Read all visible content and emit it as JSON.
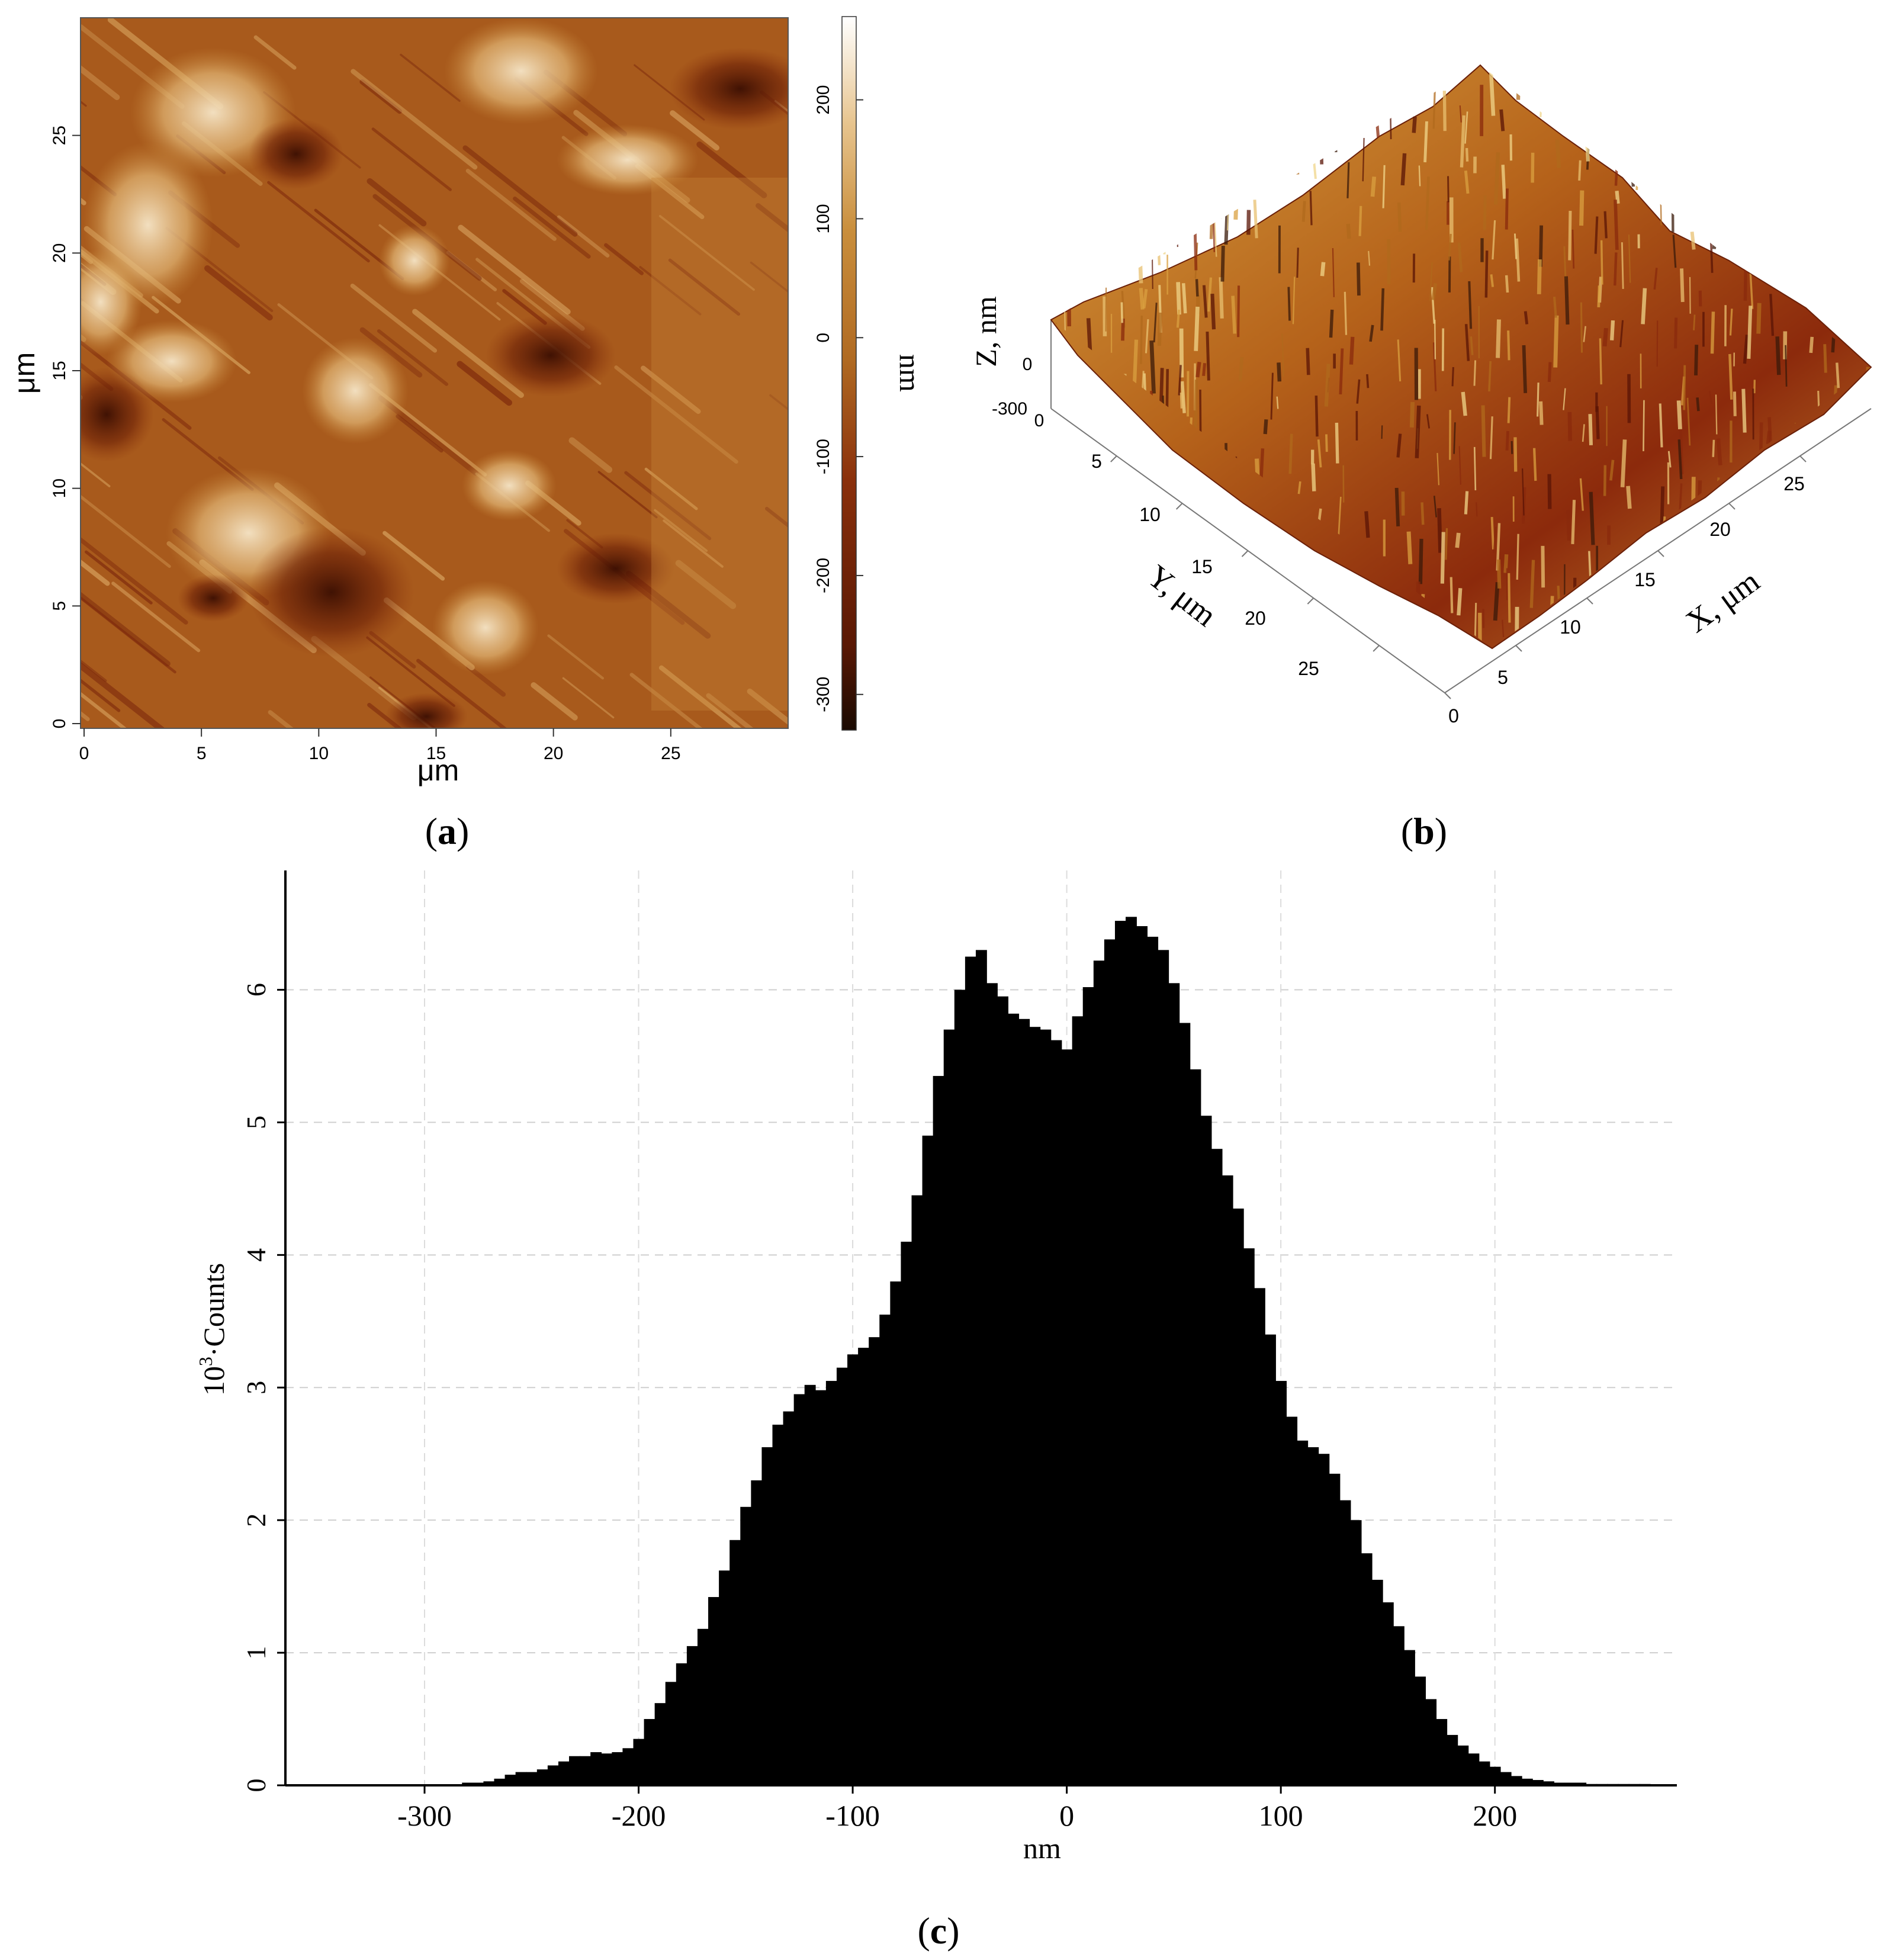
{
  "panels": {
    "a": {
      "label_paren_open": "(",
      "label_letter": "a",
      "label_paren_close": ")",
      "x_axis_label": "μm",
      "y_axis_label": "μm",
      "x_ticks": [
        "0",
        "5",
        "10",
        "15",
        "20",
        "25"
      ],
      "y_ticks": [
        "0",
        "5",
        "10",
        "15",
        "20",
        "25"
      ],
      "colorbar_label": "nm",
      "colorbar_ticks": [
        "200",
        "100",
        "0",
        "-100",
        "-200",
        "-300"
      ],
      "colorbar_range": [
        -330,
        270
      ],
      "colors": [
        "#1a0a02",
        "#6b1d06",
        "#a8541a",
        "#c98a3a",
        "#e0b877",
        "#f3e2c4",
        "#ffffff"
      ]
    },
    "b": {
      "label_paren_open": "(",
      "label_letter": "b",
      "label_paren_close": ")",
      "z_axis_label": "Z, nm",
      "z_ticks": [
        "0",
        "-300"
      ],
      "y_axis_label": "Y, μm",
      "y_ticks": [
        "0",
        "5",
        "10",
        "15",
        "20",
        "25"
      ],
      "x_axis_label": "X, μm",
      "x_ticks": [
        "0",
        "5",
        "10",
        "15",
        "20",
        "25"
      ]
    },
    "c": {
      "label_paren_open": "(",
      "label_letter": "c",
      "label_paren_close": ")"
    }
  },
  "chart_data": [
    {
      "type": "heatmap",
      "panel": "a",
      "xlabel": "μm",
      "ylabel": "μm",
      "xlim": [
        0,
        30
      ],
      "ylim": [
        0,
        30
      ],
      "colorbar_label": "nm",
      "zlim": [
        -330,
        270
      ]
    },
    {
      "type": "area",
      "panel": "b",
      "xlabel": "X, μm",
      "ylabel": "Y, μm",
      "zlabel": "Z, nm",
      "xlim": [
        0,
        30
      ],
      "ylim": [
        0,
        30
      ]
    },
    {
      "type": "bar",
      "panel": "c",
      "title": "",
      "xlabel": "nm",
      "ylabel_base": "10",
      "ylabel_exp": "3",
      "ylabel_rest": "·Counts",
      "xlim": [
        -365,
        285
      ],
      "ylim": [
        0,
        6.9
      ],
      "x_ticks": [
        -300,
        -200,
        -100,
        0,
        100,
        200
      ],
      "y_ticks": [
        0,
        1,
        2,
        3,
        4,
        5,
        6
      ],
      "grid": true,
      "bin_width": 5,
      "x": [
        -280,
        -275,
        -270,
        -265,
        -260,
        -255,
        -250,
        -245,
        -240,
        -235,
        -230,
        -225,
        -220,
        -215,
        -210,
        -205,
        -200,
        -195,
        -190,
        -185,
        -180,
        -175,
        -170,
        -165,
        -160,
        -155,
        -150,
        -145,
        -140,
        -135,
        -130,
        -125,
        -120,
        -115,
        -110,
        -105,
        -100,
        -95,
        -90,
        -85,
        -80,
        -75,
        -70,
        -65,
        -60,
        -55,
        -50,
        -45,
        -40,
        -35,
        -30,
        -25,
        -20,
        -15,
        -10,
        -5,
        0,
        5,
        10,
        15,
        20,
        25,
        30,
        35,
        40,
        45,
        50,
        55,
        60,
        65,
        70,
        75,
        80,
        85,
        90,
        95,
        100,
        105,
        110,
        115,
        120,
        125,
        130,
        135,
        140,
        145,
        150,
        155,
        160,
        165,
        170,
        175,
        180,
        185,
        190,
        195,
        200,
        205,
        210,
        215,
        220,
        225,
        230,
        235,
        240,
        245,
        250,
        255,
        260,
        265,
        270
      ],
      "values": [
        0.02,
        0.02,
        0.03,
        0.05,
        0.08,
        0.1,
        0.1,
        0.12,
        0.15,
        0.18,
        0.22,
        0.22,
        0.25,
        0.24,
        0.25,
        0.28,
        0.35,
        0.5,
        0.62,
        0.78,
        0.92,
        1.05,
        1.18,
        1.42,
        1.62,
        1.85,
        2.1,
        2.3,
        2.55,
        2.72,
        2.82,
        2.95,
        3.02,
        2.98,
        3.05,
        3.15,
        3.25,
        3.3,
        3.38,
        3.55,
        3.8,
        4.1,
        4.45,
        4.9,
        5.35,
        5.7,
        6.0,
        6.25,
        6.3,
        6.05,
        5.95,
        5.82,
        5.78,
        5.72,
        5.7,
        5.62,
        5.55,
        5.8,
        6.02,
        6.22,
        6.38,
        6.52,
        6.55,
        6.48,
        6.4,
        6.3,
        6.05,
        5.75,
        5.4,
        5.05,
        4.8,
        4.6,
        4.35,
        4.05,
        3.75,
        3.4,
        3.05,
        2.78,
        2.6,
        2.55,
        2.5,
        2.35,
        2.15,
        2.0,
        1.75,
        1.55,
        1.38,
        1.2,
        1.02,
        0.82,
        0.65,
        0.5,
        0.38,
        0.3,
        0.24,
        0.18,
        0.14,
        0.1,
        0.07,
        0.05,
        0.04,
        0.03,
        0.02,
        0.02,
        0.02,
        0.01,
        0.01,
        0.01,
        0.01,
        0.01,
        0.01
      ]
    }
  ]
}
